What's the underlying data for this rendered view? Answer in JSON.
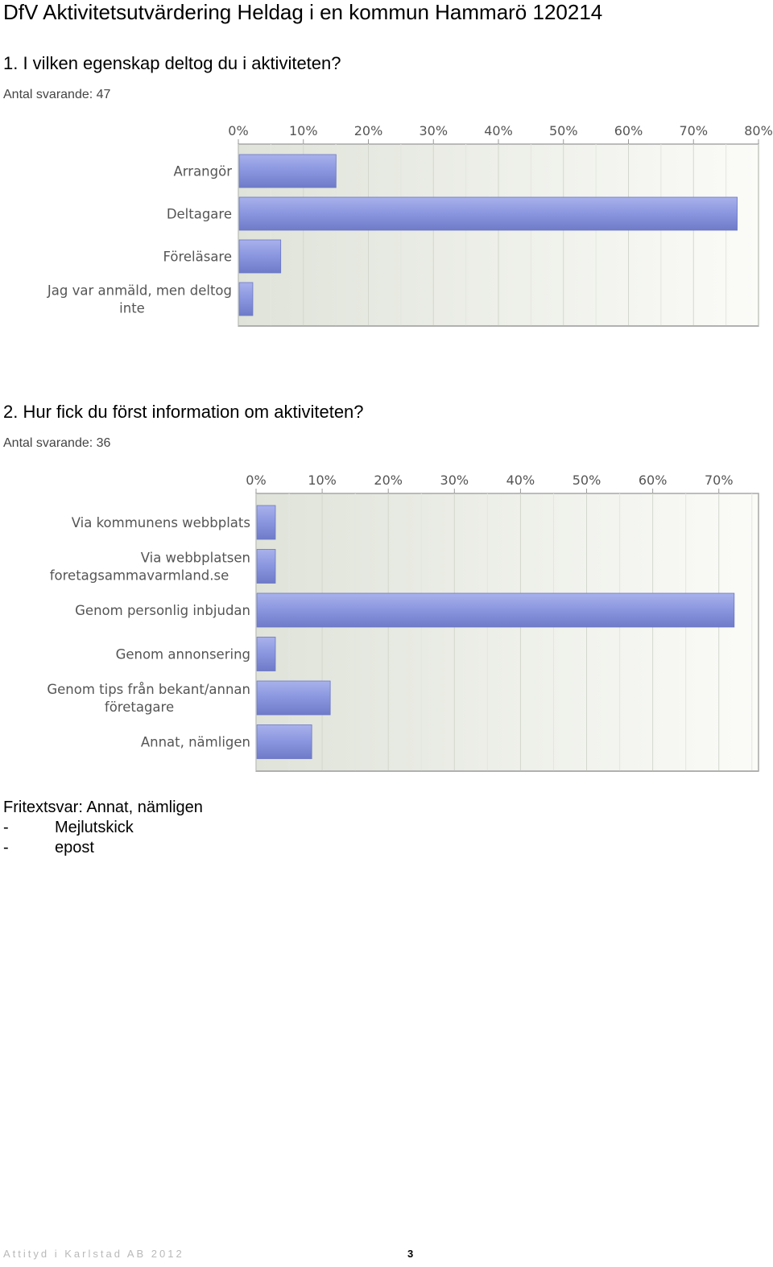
{
  "page": {
    "title": "DfV Aktivitetsutvärdering Heldag i en kommun Hammarö 120214",
    "footer_left": "Attityd i Karlstad AB 2012",
    "footer_page": "3"
  },
  "questions": [
    {
      "title": "1. I vilken egenskap deltog du i aktiviteten?",
      "count": "Antal svarande: 47"
    },
    {
      "title": "2. Hur fick du först information om aktiviteten?",
      "count": "Antal svarande: 36"
    }
  ],
  "chart_data": [
    {
      "type": "bar",
      "orientation": "horizontal",
      "title": "",
      "xlabel": "",
      "ylabel": "",
      "xlim": [
        0,
        80
      ],
      "ticks": [
        "0%",
        "10%",
        "20%",
        "30%",
        "40%",
        "50%",
        "60%",
        "70%",
        "80%"
      ],
      "categories": [
        [
          "Arrangör"
        ],
        [
          "Deltagare"
        ],
        [
          "Föreläsare"
        ],
        [
          "Jag var anmäld, men deltog",
          "inte"
        ]
      ],
      "values": [
        14.9,
        76.6,
        6.4,
        2.1
      ],
      "grid": true,
      "bar_color": "#8c98e0"
    },
    {
      "type": "bar",
      "orientation": "horizontal",
      "title": "",
      "xlabel": "",
      "ylabel": "",
      "xlim": [
        0,
        76
      ],
      "ticks": [
        "0%",
        "10%",
        "20%",
        "30%",
        "40%",
        "50%",
        "60%",
        "70%"
      ],
      "categories": [
        [
          "Via kommunens webbplats"
        ],
        [
          "Via webbplatsen",
          "foretagsammavarmland.se"
        ],
        [
          "Genom personlig inbjudan"
        ],
        [
          "Genom annonsering"
        ],
        [
          "Genom tips från bekant/annan",
          "företagare"
        ],
        [
          "Annat, nämligen"
        ]
      ],
      "values": [
        2.8,
        2.8,
        72.2,
        2.8,
        11.1,
        8.3
      ],
      "grid": true,
      "bar_color": "#8c98e0"
    }
  ],
  "freetext": {
    "heading": "Fritextsvar: Annat, nämligen",
    "items": [
      {
        "dash": "-",
        "text": "Mejlutskick"
      },
      {
        "dash": "-",
        "text": "epost"
      }
    ]
  }
}
